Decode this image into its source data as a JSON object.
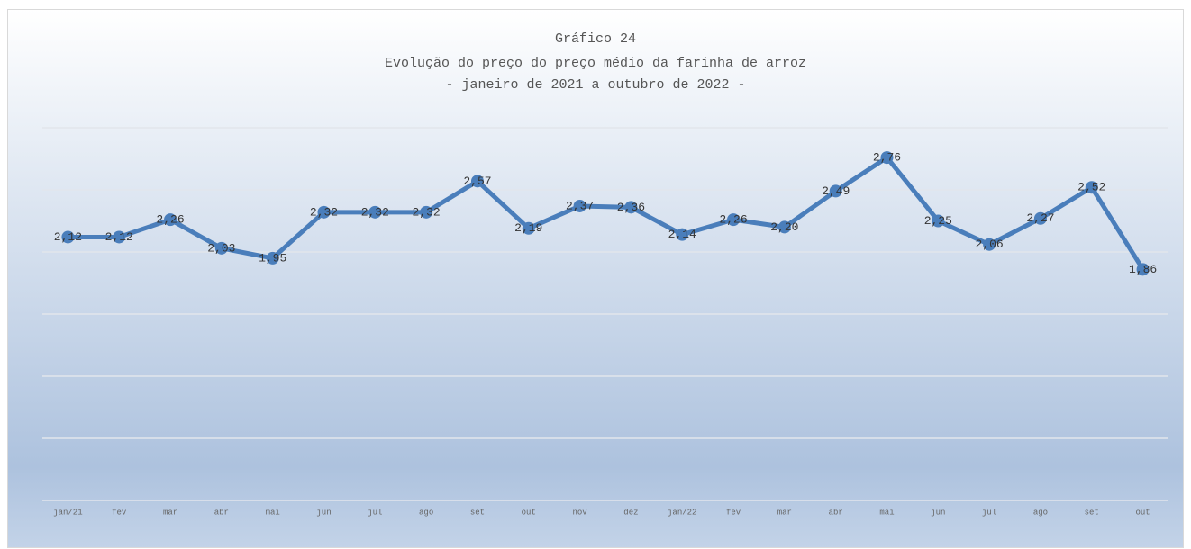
{
  "chart_data": {
    "type": "line",
    "title": "Gráfico 24",
    "subtitle": [
      "Evolução do preço do preço médio da farinha de arroz",
      "- janeiro de 2021 a outubro de 2022 -"
    ],
    "categories": [
      "jan/21",
      "fev",
      "mar",
      "abr",
      "mai",
      "jun",
      "jul",
      "ago",
      "set",
      "out",
      "nov",
      "dez",
      "jan/22",
      "fev",
      "mar",
      "abr",
      "mai",
      "jun",
      "jul",
      "ago",
      "set",
      "out"
    ],
    "series": [
      {
        "name": "Preço médio",
        "color": "#4a7ebb",
        "values": [
          2.12,
          2.12,
          2.26,
          2.03,
          1.95,
          2.32,
          2.32,
          2.32,
          2.57,
          2.19,
          2.37,
          2.36,
          2.14,
          2.26,
          2.2,
          2.49,
          2.76,
          2.25,
          2.06,
          2.27,
          2.52,
          1.86
        ],
        "value_labels": [
          "2,12",
          "2,12",
          "2,26",
          "2,03",
          "1,95",
          "2,32",
          "2,32",
          "2,32",
          "2,57",
          "2,19",
          "2,37",
          "2,36",
          "2,14",
          "2,26",
          "2,20",
          "2,49",
          "2,76",
          "2,25",
          "2,06",
          "2,27",
          "2,52",
          "1,86"
        ]
      }
    ],
    "ylim": [
      0,
      3
    ],
    "yticks": [
      0,
      0.5,
      1,
      1.5,
      2,
      2.5,
      3
    ],
    "grid": true
  }
}
